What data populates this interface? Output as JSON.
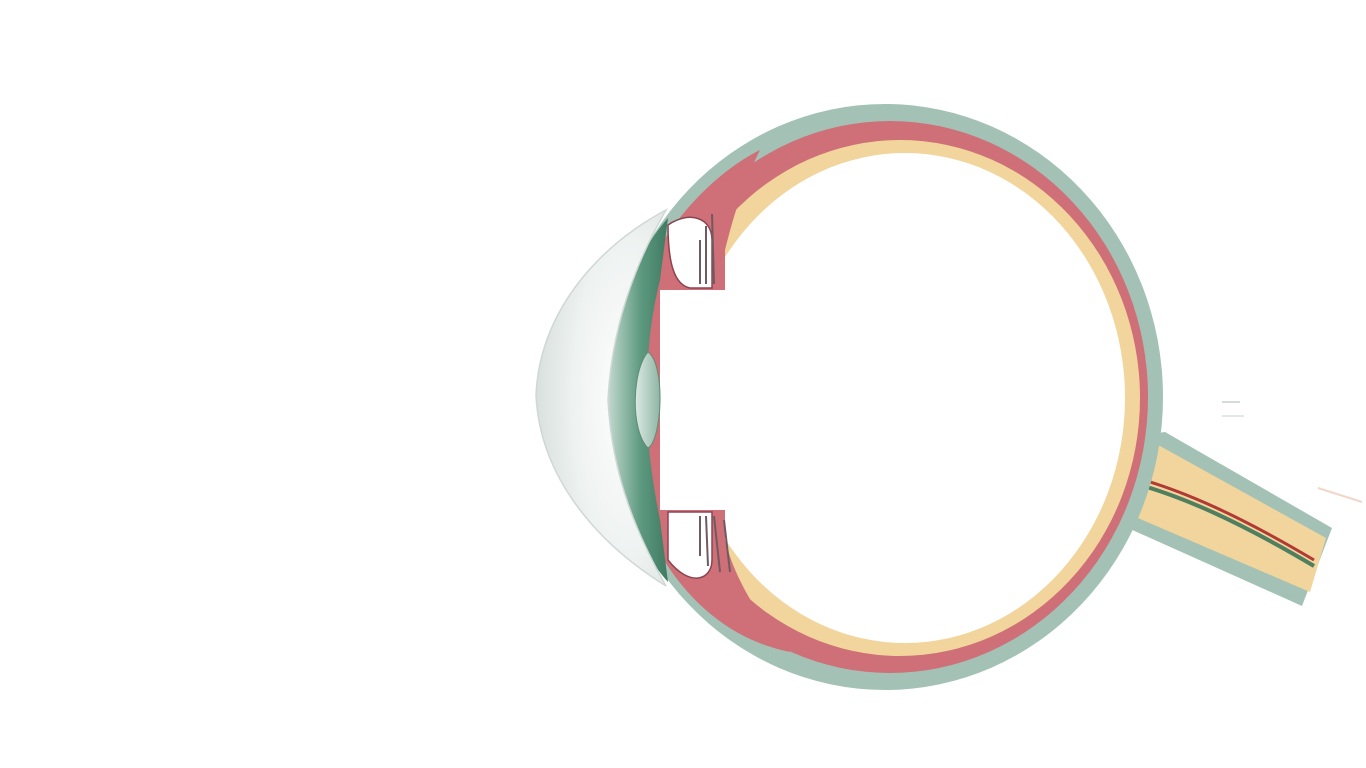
{
  "diagram": {
    "colors": {
      "background": "#ffffff",
      "sclera": "#a3c2b5",
      "choroid": "#cf6f77",
      "retina": "#f1d59c",
      "iris": "#4e8b72",
      "cornea": "#eef2f1",
      "central_artery": "#b23a35",
      "central_vein": "#4f7f5e"
    },
    "parts": [
      {
        "id": "cornea",
        "icon": "cornea-icon"
      },
      {
        "id": "iris",
        "icon": "iris-icon"
      },
      {
        "id": "lens",
        "icon": "lens-icon"
      },
      {
        "id": "ciliary-body",
        "icon": "ciliary-body-icon"
      },
      {
        "id": "sclera",
        "icon": "sclera-icon"
      },
      {
        "id": "choroid",
        "icon": "choroid-icon"
      },
      {
        "id": "retina",
        "icon": "retina-icon"
      },
      {
        "id": "vitreous-body",
        "icon": "vitreous-icon"
      },
      {
        "id": "optic-nerve",
        "icon": "optic-nerve-icon"
      }
    ]
  }
}
